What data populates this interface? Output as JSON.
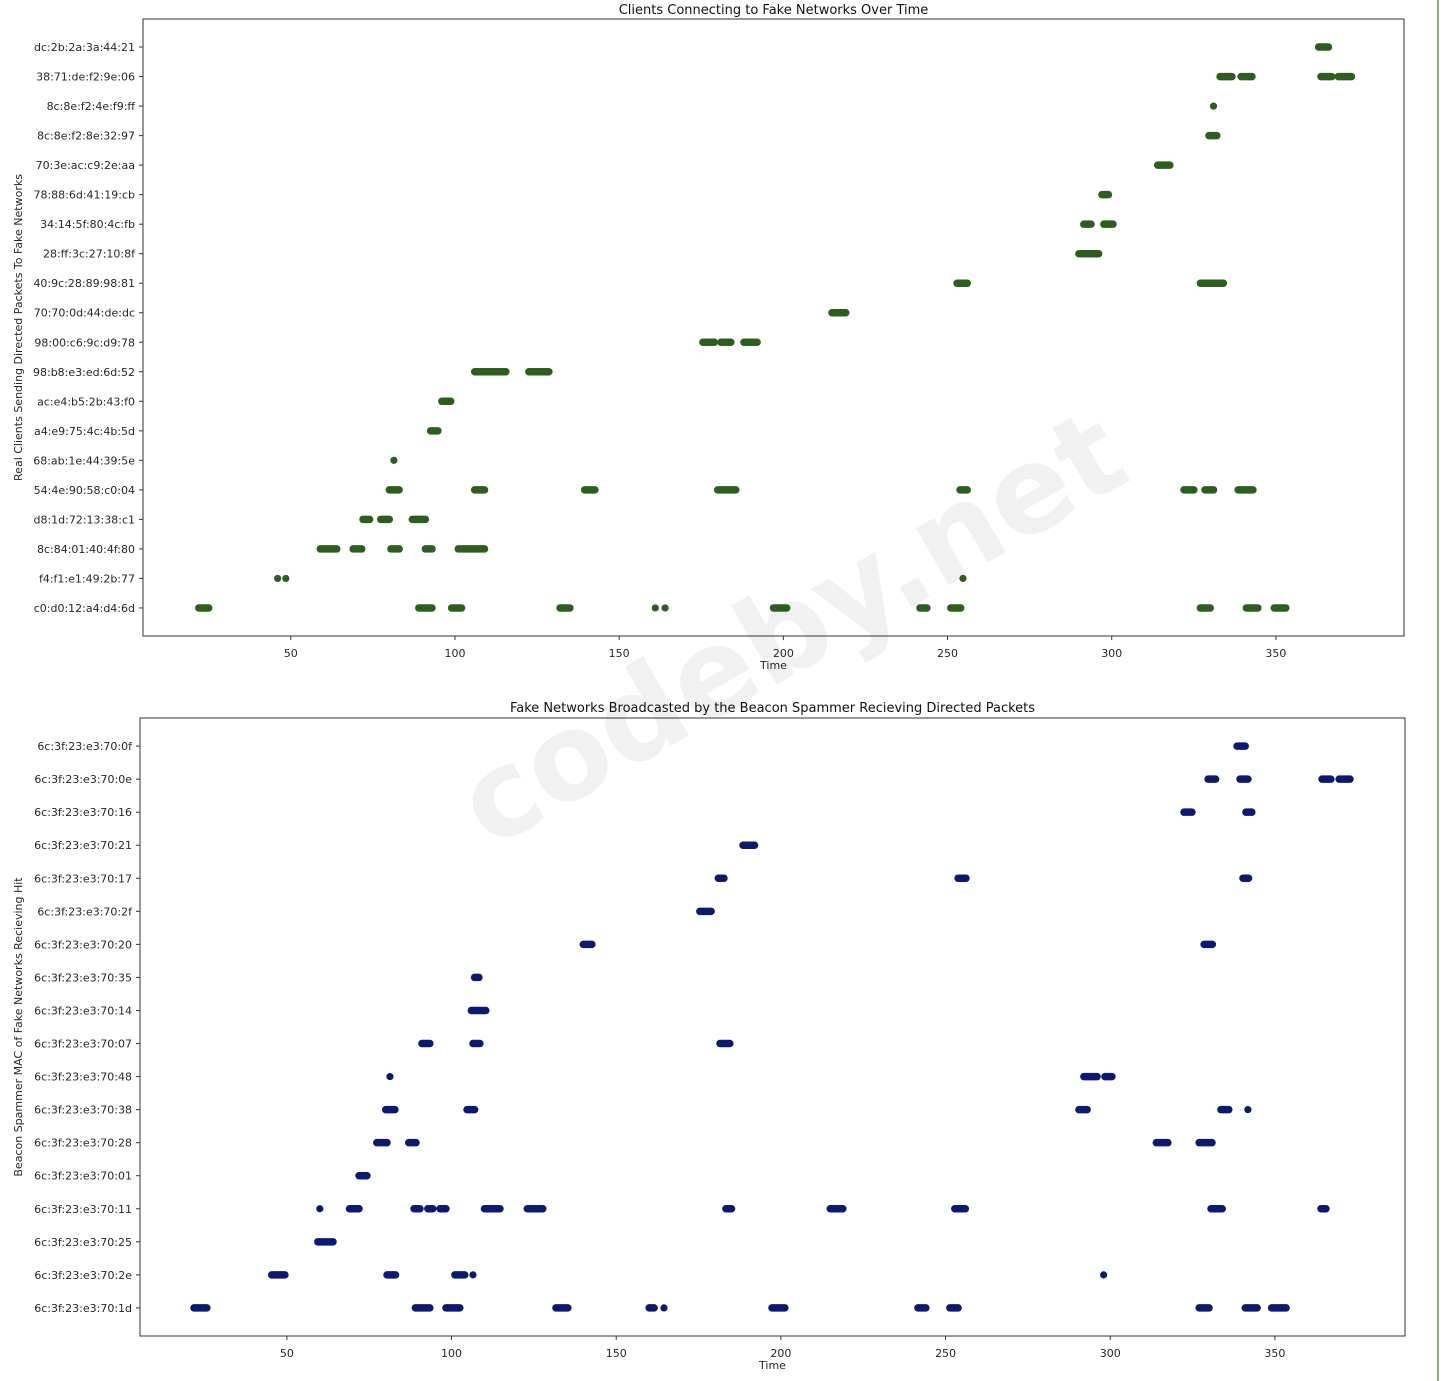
{
  "watermark": "codeby.net",
  "chart_data": [
    {
      "type": "scatter",
      "title": "Clients Connecting to Fake Networks Over Time",
      "xlabel": "Time",
      "ylabel": "Real Clients Sending Directed Packets To Fake Networks",
      "xlim": [
        5,
        389
      ],
      "xticks": [
        50,
        100,
        150,
        200,
        250,
        300,
        350
      ],
      "grid": false,
      "color": "#2d5e1f",
      "note_ranges": "each range is [start_time, end_time] of a dense run of points",
      "rows": [
        {
          "label": "c0:d0:12:a4:d4:6d",
          "ranges": [
            [
              22,
              25
            ],
            [
              89,
              93
            ],
            [
              99,
              102
            ],
            [
              132,
              135
            ],
            [
              161,
              161
            ],
            [
              164,
              164
            ],
            [
              197,
              201
            ],
            [
              241.6,
              243.7
            ],
            [
              251,
              254
            ],
            [
              327,
              330
            ],
            [
              341,
              344.5
            ],
            [
              349.5,
              353
            ]
          ]
        },
        {
          "label": "f4:f1:e1:49:2b:77",
          "ranges": [
            [
              46,
              46
            ],
            [
              48.5,
              48.5
            ],
            [
              254.7,
              254.7
            ]
          ]
        },
        {
          "label": "8c:84:01:40:4f:80",
          "ranges": [
            [
              59,
              64
            ],
            [
              69,
              71.6
            ],
            [
              80.5,
              83
            ],
            [
              91,
              93
            ],
            [
              101,
              109
            ]
          ]
        },
        {
          "label": "d8:1d:72:13:38:c1",
          "ranges": [
            [
              72,
              74
            ],
            [
              77.4,
              80
            ],
            [
              87,
              91
            ]
          ]
        },
        {
          "label": "54:4e:90:58:c0:04",
          "ranges": [
            [
              80,
              83
            ],
            [
              106,
              109
            ],
            [
              139.5,
              142.6
            ],
            [
              180,
              185.5
            ],
            [
              253.8,
              256
            ],
            [
              322,
              325
            ],
            [
              328.4,
              331
            ],
            [
              338.5,
              343
            ]
          ]
        },
        {
          "label": "68:ab:1e:44:39:5e",
          "ranges": [
            [
              81.4,
              81.4
            ]
          ]
        },
        {
          "label": "a4:e9:75:4c:4b:5d",
          "ranges": [
            [
              92.6,
              94.8
            ]
          ]
        },
        {
          "label": "ac:e4:b5:2b:43:f0",
          "ranges": [
            [
              96,
              98.7
            ]
          ]
        },
        {
          "label": "98:b8:e3:ed:6d:52",
          "ranges": [
            [
              106,
              115.5
            ],
            [
              122.5,
              128.6
            ]
          ]
        },
        {
          "label": "98:00:c6:9c:d9:78",
          "ranges": [
            [
              175.5,
              179
            ],
            [
              181,
              184
            ],
            [
              188,
              192
            ]
          ]
        },
        {
          "label": "70:70:0d:44:de:dc",
          "ranges": [
            [
              214.8,
              219
            ]
          ]
        },
        {
          "label": "40:9c:28:89:98:81",
          "ranges": [
            [
              252.9,
              256
            ],
            [
              327,
              334
            ]
          ]
        },
        {
          "label": "28:ff:3c:27:10:8f",
          "ranges": [
            [
              290,
              296
            ]
          ]
        },
        {
          "label": "34:14:5f:80:4c:fb",
          "ranges": [
            [
              291.5,
              293.7
            ],
            [
              297.6,
              300.4
            ]
          ]
        },
        {
          "label": "78:88:6d:41:19:cb",
          "ranges": [
            [
              297,
              299
            ]
          ]
        },
        {
          "label": "70:3e:ac:c9:2e:aa",
          "ranges": [
            [
              314,
              317.7
            ]
          ]
        },
        {
          "label": "8c:8e:f2:8e:32:97",
          "ranges": [
            [
              329.6,
              332
            ]
          ]
        },
        {
          "label": "8c:8e:f2:4e:f9:ff",
          "ranges": [
            [
              331,
              331
            ]
          ]
        },
        {
          "label": "38:71:de:f2:9e:06",
          "ranges": [
            [
              333,
              336.6
            ],
            [
              339.4,
              342.7
            ],
            [
              363.7,
              367
            ],
            [
              369,
              373
            ]
          ]
        },
        {
          "label": "dc:2b:2a:3a:44:21",
          "ranges": [
            [
              363,
              366
            ]
          ]
        }
      ]
    },
    {
      "type": "scatter",
      "title": "Fake Networks Broadcasted by the Beacon Spammer Recieving Directed Packets",
      "xlabel": "Time",
      "ylabel": "Beacon Spammer MAC of Fake Networks Recieving Hit",
      "xlim": [
        5.4,
        389.5
      ],
      "xticks": [
        50,
        100,
        150,
        200,
        250,
        300,
        350
      ],
      "grid": false,
      "color": "#0b1a6e",
      "rows": [
        {
          "label": "6c:3f:23:e3:70:1d",
          "ranges": [
            [
              21.8,
              25.7
            ],
            [
              89,
              93.4
            ],
            [
              98.3,
              102.5
            ],
            [
              131.7,
              135.3
            ],
            [
              160,
              161.5
            ],
            [
              164.5,
              164.5
            ],
            [
              197.3,
              201.2
            ],
            [
              241.6,
              244
            ],
            [
              251.3,
              253.8
            ],
            [
              327,
              330
            ],
            [
              341,
              344.6
            ],
            [
              349,
              353.4
            ]
          ]
        },
        {
          "label": "6c:3f:23:e3:70:2e",
          "ranges": [
            [
              45.4,
              49.4
            ],
            [
              80.4,
              83
            ],
            [
              101,
              104
            ],
            [
              106.5,
              106.5
            ],
            [
              298,
              298
            ]
          ]
        },
        {
          "label": "6c:3f:23:e3:70:25",
          "ranges": [
            [
              59.4,
              64
            ]
          ]
        },
        {
          "label": "6c:3f:23:e3:70:11",
          "ranges": [
            [
              60,
              60
            ],
            [
              69,
              71.9
            ],
            [
              88.6,
              90.4
            ],
            [
              92.8,
              94.3
            ],
            [
              96.5,
              98.3
            ],
            [
              110,
              114.7
            ],
            [
              123,
              127.7
            ],
            [
              183.3,
              185
            ],
            [
              215,
              218.8
            ],
            [
              252.8,
              256
            ],
            [
              330.6,
              334
            ],
            [
              364,
              365.5
            ]
          ]
        },
        {
          "label": "6c:3f:23:e3:70:01",
          "ranges": [
            [
              71.9,
              74.3
            ]
          ]
        },
        {
          "label": "6c:3f:23:e3:70:28",
          "ranges": [
            [
              77.3,
              80.4
            ],
            [
              87,
              89.2
            ],
            [
              314,
              317.5
            ],
            [
              327,
              330.9
            ]
          ]
        },
        {
          "label": "6c:3f:23:e3:70:38",
          "ranges": [
            [
              80,
              82.8
            ],
            [
              104.7,
              107
            ],
            [
              290.5,
              293
            ],
            [
              333.6,
              336
            ],
            [
              341.8,
              341.8
            ]
          ]
        },
        {
          "label": "6c:3f:23:e3:70:48",
          "ranges": [
            [
              81.3,
              81.3
            ],
            [
              292,
              296
            ],
            [
              298.4,
              300.5
            ]
          ]
        },
        {
          "label": "6c:3f:23:e3:70:07",
          "ranges": [
            [
              91,
              93.4
            ],
            [
              106.5,
              108.6
            ],
            [
              181.5,
              184.5
            ]
          ]
        },
        {
          "label": "6c:3f:23:e3:70:14",
          "ranges": [
            [
              106,
              110.4
            ]
          ]
        },
        {
          "label": "6c:3f:23:e3:70:35",
          "ranges": [
            [
              107,
              108.3
            ]
          ]
        },
        {
          "label": "6c:3f:23:e3:70:20",
          "ranges": [
            [
              140,
              142.6
            ],
            [
              328.5,
              331
            ]
          ]
        },
        {
          "label": "6c:3f:23:e3:70:2f",
          "ranges": [
            [
              175.4,
              178.8
            ]
          ]
        },
        {
          "label": "6c:3f:23:e3:70:17",
          "ranges": [
            [
              181,
              182.7
            ],
            [
              253.8,
              256.2
            ],
            [
              340.3,
              342
            ]
          ]
        },
        {
          "label": "6c:3f:23:e3:70:21",
          "ranges": [
            [
              188.5,
              192
            ]
          ]
        },
        {
          "label": "6c:3f:23:e3:70:16",
          "ranges": [
            [
              322.4,
              324.8
            ],
            [
              341.2,
              343
            ]
          ]
        },
        {
          "label": "6c:3f:23:e3:70:0e",
          "ranges": [
            [
              329.7,
              332
            ],
            [
              339.4,
              341.8
            ],
            [
              364.3,
              367
            ],
            [
              369.5,
              372.8
            ]
          ]
        },
        {
          "label": "6c:3f:23:e3:70:0f",
          "ranges": [
            [
              338.5,
              341
            ]
          ]
        }
      ]
    }
  ]
}
